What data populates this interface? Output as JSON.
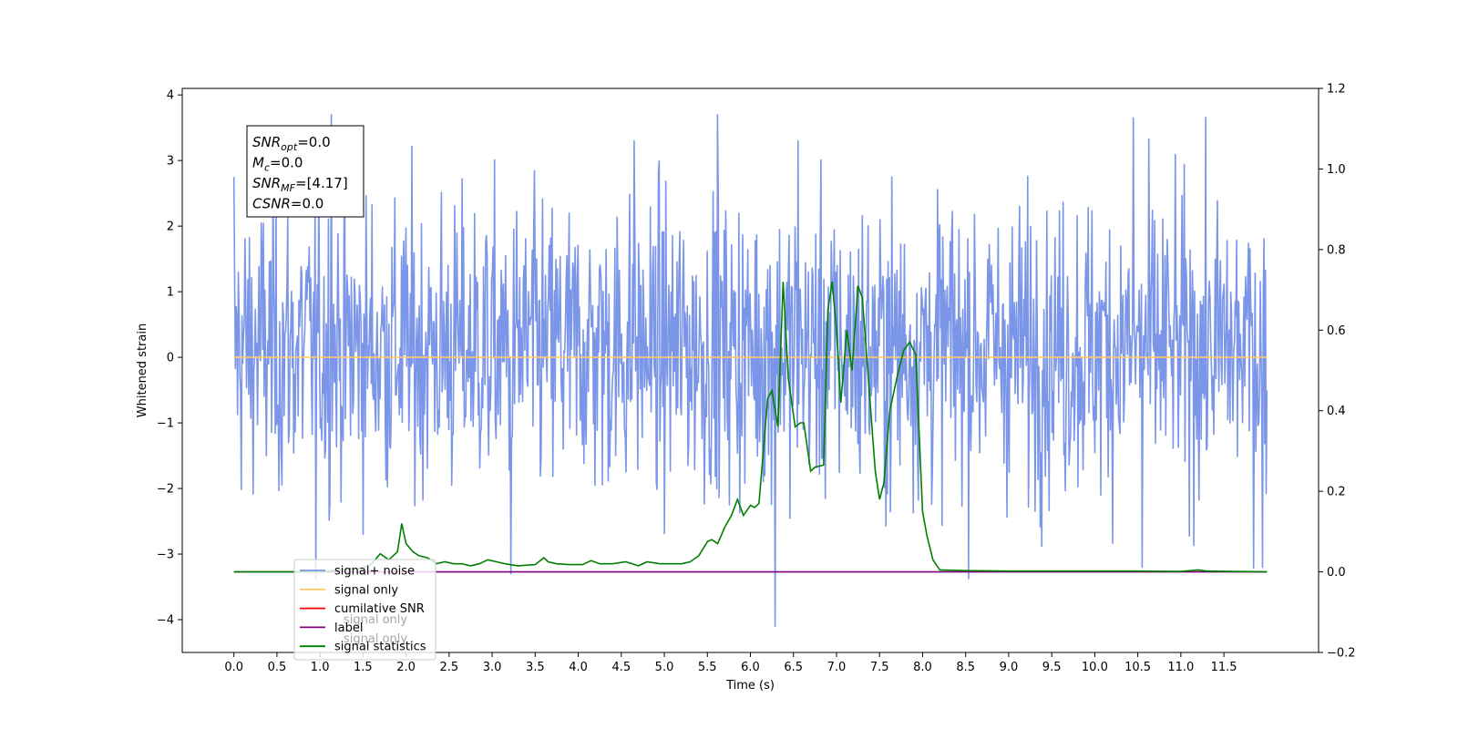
{
  "chart_data": {
    "type": "line",
    "xlabel": "Time (s)",
    "ylabel": "Whitened strain",
    "xlim": [
      -0.6,
      12.6
    ],
    "ylim": [
      -4.5,
      4.1
    ],
    "y2lim": [
      -0.2,
      1.2
    ],
    "x_ticks": [
      0.0,
      0.5,
      1.0,
      1.5,
      2.0,
      2.5,
      3.0,
      3.5,
      4.0,
      4.5,
      5.0,
      5.5,
      6.0,
      6.5,
      7.0,
      7.5,
      8.0,
      8.5,
      9.0,
      9.5,
      10.0,
      10.5,
      11.0,
      11.5
    ],
    "x_tick_labels": [
      "0.0",
      "0.5",
      "1.0",
      "1.5",
      "2.0",
      "2.5",
      "3.0",
      "3.5",
      "4.0",
      "4.5",
      "5.0",
      "5.5",
      "6.0",
      "6.5",
      "7.0",
      "7.5",
      "8.0",
      "8.5",
      "9.0",
      "9.5",
      "10.0",
      "10.5",
      "11.0",
      "11.5"
    ],
    "y_ticks": [
      -4,
      -3,
      -2,
      -1,
      0,
      1,
      2,
      3,
      4
    ],
    "y_tick_labels": [
      "−4",
      "−3",
      "−2",
      "−1",
      "0",
      "1",
      "2",
      "3",
      "4"
    ],
    "y2_ticks": [
      -0.2,
      0.0,
      0.2,
      0.4,
      0.6,
      0.8,
      1.0,
      1.2
    ],
    "y2_tick_labels": [
      "−0.2",
      "0.0",
      "0.2",
      "0.4",
      "0.6",
      "0.8",
      "1.0",
      "1.2"
    ],
    "noise": {
      "x_start": 0.0,
      "x_end": 12.0,
      "sample_count": 1400,
      "typical_range": [
        -1.7,
        2.0
      ],
      "min": -4.1,
      "max": 3.7,
      "notable_peaks": [
        {
          "x": 1.13,
          "y": 3.7
        },
        {
          "x": 5.62,
          "y": 3.7
        },
        {
          "x": 10.45,
          "y": 3.65
        },
        {
          "x": 4.65,
          "y": 3.3
        },
        {
          "x": 6.55,
          "y": 3.3
        },
        {
          "x": 0.0,
          "y": 2.75
        },
        {
          "x": 6.29,
          "y": -4.1
        },
        {
          "x": 0.95,
          "y": -3.4
        },
        {
          "x": 3.22,
          "y": -3.3
        },
        {
          "x": 10.55,
          "y": -3.2
        },
        {
          "x": 11.95,
          "y": -3.2
        }
      ]
    },
    "series": [
      {
        "name": "signal+ noise",
        "color": "#7b96e8",
        "axis": "left"
      },
      {
        "name": "signal only",
        "color": "#ffc96b",
        "axis": "left",
        "x": [
          0.0,
          12.0
        ],
        "y": [
          0.0,
          0.0
        ]
      },
      {
        "name": "cumilative SNR",
        "color": "#ff0000",
        "axis": "right",
        "x": [],
        "y": []
      },
      {
        "name": "label",
        "color": "#800080",
        "axis": "right",
        "x": [
          0.0,
          12.0
        ],
        "y": [
          0.0,
          0.0
        ]
      },
      {
        "name": "signal statistics",
        "color": "#008000",
        "axis": "right",
        "x": [
          0.0,
          0.5,
          1.0,
          1.5,
          1.6,
          1.7,
          1.8,
          1.9,
          1.95,
          2.0,
          2.08,
          2.15,
          2.25,
          2.35,
          2.45,
          2.55,
          2.65,
          2.75,
          2.85,
          2.95,
          3.05,
          3.15,
          3.3,
          3.5,
          3.6,
          3.65,
          3.75,
          3.9,
          4.05,
          4.15,
          4.25,
          4.4,
          4.55,
          4.7,
          4.8,
          4.95,
          5.1,
          5.2,
          5.3,
          5.4,
          5.5,
          5.55,
          5.62,
          5.7,
          5.78,
          5.85,
          5.92,
          6.0,
          6.05,
          6.1,
          6.2,
          6.25,
          6.32,
          6.38,
          6.44,
          6.52,
          6.58,
          6.62,
          6.7,
          6.75,
          6.85,
          6.9,
          6.95,
          7.0,
          7.05,
          7.12,
          7.18,
          7.25,
          7.3,
          7.38,
          7.45,
          7.5,
          7.55,
          7.62,
          7.7,
          7.78,
          7.85,
          7.92,
          8.0,
          8.05,
          8.12,
          8.2,
          8.5,
          9.0,
          9.5,
          10.0,
          10.5,
          11.0,
          11.2,
          11.3,
          12.0
        ],
        "y": [
          0.0,
          0.0,
          0.0,
          0.01,
          0.02,
          0.045,
          0.03,
          0.05,
          0.12,
          0.07,
          0.05,
          0.04,
          0.035,
          0.02,
          0.025,
          0.02,
          0.02,
          0.015,
          0.02,
          0.03,
          0.025,
          0.02,
          0.015,
          0.018,
          0.035,
          0.025,
          0.02,
          0.018,
          0.018,
          0.028,
          0.02,
          0.02,
          0.025,
          0.015,
          0.025,
          0.02,
          0.02,
          0.02,
          0.025,
          0.04,
          0.075,
          0.08,
          0.07,
          0.11,
          0.14,
          0.18,
          0.14,
          0.165,
          0.16,
          0.17,
          0.43,
          0.45,
          0.36,
          0.72,
          0.48,
          0.36,
          0.37,
          0.37,
          0.25,
          0.26,
          0.265,
          0.65,
          0.72,
          0.6,
          0.42,
          0.6,
          0.5,
          0.71,
          0.68,
          0.45,
          0.25,
          0.18,
          0.22,
          0.4,
          0.48,
          0.55,
          0.57,
          0.54,
          0.15,
          0.09,
          0.03,
          0.005,
          0.003,
          0.002,
          0.002,
          0.002,
          0.002,
          0.001,
          0.005,
          0.002,
          0.0
        ]
      }
    ],
    "legend": {
      "placement": "lower-left",
      "entries": [
        {
          "label": "signal+ noise",
          "color": "#7b96e8"
        },
        {
          "label": "signal only",
          "color": "#ffc96b"
        },
        {
          "label": "cumilative SNR",
          "color": "#ff0000"
        },
        {
          "label": "label",
          "color": "#800080"
        },
        {
          "label": "signal statistics",
          "color": "#008000"
        }
      ],
      "hidden_text": [
        "signal only",
        "signal only"
      ]
    },
    "annotation": {
      "lines": [
        {
          "var": "SNR",
          "sub": "opt",
          "value": "=0.0"
        },
        {
          "var": "M",
          "sub": "c",
          "value": "=0.0"
        },
        {
          "var": "SNR",
          "sub": "MF",
          "value": "=[4.17]"
        },
        {
          "var": "CSNR",
          "sub": "",
          "value": "=0.0"
        }
      ]
    }
  }
}
